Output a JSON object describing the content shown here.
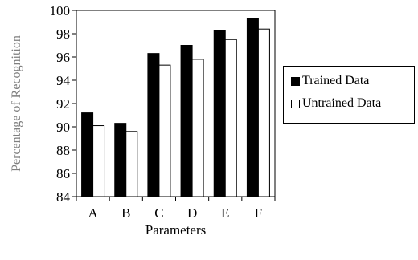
{
  "chart_data": {
    "type": "bar",
    "categories": [
      "A",
      "B",
      "C",
      "D",
      "E",
      "F"
    ],
    "series": [
      {
        "name": "Trained Data",
        "values": [
          91.2,
          90.3,
          96.3,
          97.0,
          98.3,
          99.3
        ],
        "color": "#000000"
      },
      {
        "name": "Untrained Data",
        "values": [
          90.1,
          89.6,
          95.3,
          95.8,
          97.5,
          98.4
        ],
        "color": "#ffffff"
      }
    ],
    "title": "",
    "xlabel": "Parameters",
    "ylabel": "Percentage of Recognition",
    "ylim": [
      84,
      100
    ],
    "yticks": [
      84,
      86,
      88,
      90,
      92,
      94,
      96,
      98,
      100
    ],
    "grid": false,
    "legend_position": "right"
  }
}
